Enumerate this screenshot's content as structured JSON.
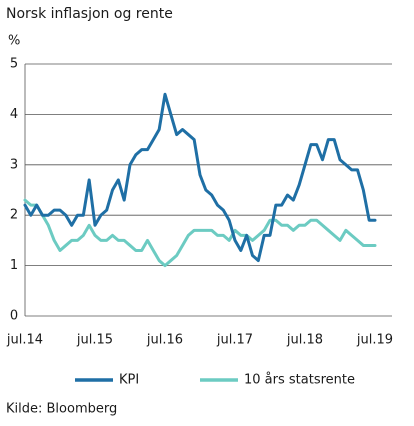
{
  "chart_data": {
    "type": "line",
    "title": "Norsk inflasjon og rente",
    "y_label": "%",
    "source": "Kilde: Bloomberg",
    "categories": [
      "jul.14",
      null,
      null,
      null,
      null,
      null,
      null,
      null,
      null,
      null,
      null,
      null,
      "jul.15",
      null,
      null,
      null,
      null,
      null,
      null,
      null,
      null,
      null,
      null,
      null,
      "jul.16",
      null,
      null,
      null,
      null,
      null,
      null,
      null,
      null,
      null,
      null,
      null,
      "jul.17",
      null,
      null,
      null,
      null,
      null,
      null,
      null,
      null,
      null,
      null,
      null,
      "jul.18",
      null,
      null,
      null,
      null,
      null,
      null,
      null,
      null,
      null,
      null,
      null,
      "jul.19"
    ],
    "series": [
      {
        "name": "KPI",
        "color": "#1f6fa5",
        "values": [
          2.2,
          2.0,
          2.2,
          2.0,
          2.0,
          2.1,
          2.1,
          2.0,
          1.8,
          2.0,
          2.0,
          2.7,
          1.8,
          2.0,
          2.1,
          2.5,
          2.7,
          2.3,
          3.0,
          3.2,
          3.3,
          3.3,
          3.5,
          3.7,
          4.4,
          4.0,
          3.6,
          3.7,
          3.6,
          3.5,
          2.8,
          2.5,
          2.4,
          2.2,
          2.1,
          1.9,
          1.5,
          1.3,
          1.6,
          1.2,
          1.1,
          1.6,
          1.6,
          2.2,
          2.2,
          2.4,
          2.3,
          2.6,
          3.0,
          3.4,
          3.4,
          3.1,
          3.5,
          3.5,
          3.1,
          3.0,
          2.9,
          2.9,
          2.5,
          1.9,
          1.9
        ]
      },
      {
        "name": "10 års statsrente",
        "color": "#6ccbc2",
        "values": [
          2.3,
          2.2,
          2.2,
          2.0,
          1.8,
          1.5,
          1.3,
          1.4,
          1.5,
          1.5,
          1.6,
          1.8,
          1.6,
          1.5,
          1.5,
          1.6,
          1.5,
          1.5,
          1.4,
          1.3,
          1.3,
          1.5,
          1.3,
          1.1,
          1.0,
          1.1,
          1.2,
          1.4,
          1.6,
          1.7,
          1.7,
          1.7,
          1.7,
          1.6,
          1.6,
          1.5,
          1.7,
          1.6,
          1.6,
          1.5,
          1.6,
          1.7,
          1.9,
          1.9,
          1.8,
          1.8,
          1.7,
          1.8,
          1.8,
          1.9,
          1.9,
          1.8,
          1.7,
          1.6,
          1.5,
          1.7,
          1.6,
          1.5,
          1.4,
          1.4,
          1.4
        ]
      }
    ],
    "ylim": [
      0,
      5
    ],
    "yticks": [
      0,
      1,
      2,
      3,
      4,
      5
    ],
    "grid": true
  }
}
